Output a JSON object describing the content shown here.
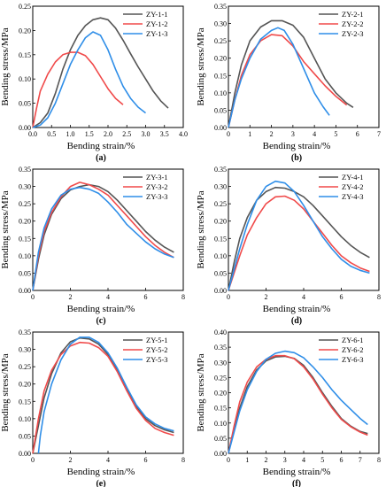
{
  "figure": {
    "panels": [
      {
        "label": "(a)",
        "ylabel": "Bending stress/MPa",
        "xlabel": "Bending strain/%"
      },
      {
        "label": "(b)",
        "ylabel": "Bending stress/MPa",
        "xlabel": "Bending strain/%"
      },
      {
        "label": "(c)",
        "ylabel": "Bending stress/MPa",
        "xlabel": "Bending strain/%"
      },
      {
        "label": "(d)",
        "ylabel": "Bending stress/MPa",
        "xlabel": "Bending strain/%"
      },
      {
        "label": "(e)",
        "ylabel": "Bending stress/MPa",
        "xlabel": "Bending strain/%"
      },
      {
        "label": "(f)",
        "ylabel": "Bending stress/MPa",
        "xlabel": "Bending strain/%"
      }
    ]
  },
  "colors": {
    "series1": "#555555",
    "series2": "#f04a4a",
    "series3": "#2f8ee8"
  },
  "chart_data": [
    {
      "type": "line",
      "title": "(a)",
      "xlabel": "Bending strain/%",
      "ylabel": "Bending stress/MPa",
      "xlim": [
        0,
        4.0
      ],
      "ylim": [
        0,
        0.25
      ],
      "xticks": [
        "0.0",
        "0.5",
        "1.0",
        "1.5",
        "2.0",
        "2.5",
        "3.0",
        "3.5",
        "4.0"
      ],
      "yticks": [
        "0.00",
        "0.05",
        "0.10",
        "0.15",
        "0.20",
        "0.25"
      ],
      "legend": "top-right",
      "series": [
        {
          "name": "ZY-1-1",
          "x": [
            0,
            0.2,
            0.4,
            0.6,
            0.8,
            1.0,
            1.2,
            1.4,
            1.6,
            1.8,
            2.0,
            2.2,
            2.4,
            2.6,
            2.8,
            3.0,
            3.2,
            3.4,
            3.6
          ],
          "y": [
            0,
            0.01,
            0.03,
            0.07,
            0.12,
            0.16,
            0.19,
            0.21,
            0.222,
            0.226,
            0.222,
            0.205,
            0.18,
            0.152,
            0.125,
            0.1,
            0.075,
            0.055,
            0.04
          ]
        },
        {
          "name": "ZY-1-2",
          "x": [
            0,
            0.1,
            0.2,
            0.4,
            0.6,
            0.8,
            1.0,
            1.2,
            1.4,
            1.6,
            1.8,
            2.0,
            2.2,
            2.4
          ],
          "y": [
            0,
            0.04,
            0.075,
            0.11,
            0.135,
            0.15,
            0.155,
            0.155,
            0.148,
            0.13,
            0.105,
            0.08,
            0.06,
            0.047
          ]
        },
        {
          "name": "ZY-1-3",
          "x": [
            0,
            0.2,
            0.4,
            0.6,
            0.8,
            1.0,
            1.2,
            1.4,
            1.6,
            1.8,
            2.0,
            2.2,
            2.4,
            2.6,
            2.8,
            3.0
          ],
          "y": [
            0,
            0.005,
            0.02,
            0.05,
            0.09,
            0.13,
            0.16,
            0.185,
            0.197,
            0.19,
            0.16,
            0.12,
            0.085,
            0.06,
            0.042,
            0.03
          ]
        }
      ]
    },
    {
      "type": "line",
      "title": "(b)",
      "xlabel": "Bending strain/%",
      "ylabel": "Bending stress/MPa",
      "xlim": [
        0,
        7
      ],
      "ylim": [
        0,
        0.35
      ],
      "xticks": [
        "0",
        "1",
        "2",
        "3",
        "4",
        "5",
        "6",
        "7"
      ],
      "yticks": [
        "0.00",
        "0.05",
        "0.10",
        "0.15",
        "0.20",
        "0.25",
        "0.30",
        "0.35"
      ],
      "legend": "top-right",
      "series": [
        {
          "name": "ZY-2-1",
          "x": [
            0,
            0.3,
            0.6,
            1.0,
            1.5,
            2.0,
            2.5,
            3.0,
            3.5,
            4.0,
            4.5,
            5.0,
            5.5,
            5.8
          ],
          "y": [
            0,
            0.1,
            0.18,
            0.25,
            0.29,
            0.308,
            0.308,
            0.295,
            0.26,
            0.2,
            0.14,
            0.1,
            0.07,
            0.058
          ]
        },
        {
          "name": "ZY-2-2",
          "x": [
            0,
            0.3,
            0.6,
            1.0,
            1.5,
            2.0,
            2.5,
            3.0,
            3.5,
            4.0,
            4.5,
            5.0,
            5.5
          ],
          "y": [
            0,
            0.08,
            0.15,
            0.21,
            0.25,
            0.268,
            0.265,
            0.235,
            0.19,
            0.155,
            0.12,
            0.09,
            0.065
          ]
        },
        {
          "name": "ZY-2-3",
          "x": [
            0,
            0.3,
            0.6,
            1.0,
            1.5,
            2.0,
            2.3,
            2.6,
            3.0,
            3.5,
            4.0,
            4.4,
            4.7
          ],
          "y": [
            0,
            0.08,
            0.14,
            0.2,
            0.255,
            0.28,
            0.288,
            0.28,
            0.24,
            0.17,
            0.1,
            0.06,
            0.035
          ]
        }
      ]
    },
    {
      "type": "line",
      "title": "(c)",
      "xlabel": "Bending strain/%",
      "ylabel": "Bending stress/MPa",
      "xlim": [
        0,
        8
      ],
      "ylim": [
        0,
        0.35
      ],
      "xticks": [
        "0",
        "2",
        "4",
        "6",
        "8"
      ],
      "yticks": [
        "0.00",
        "0.05",
        "0.10",
        "0.15",
        "0.20",
        "0.25",
        "0.30",
        "0.35"
      ],
      "legend": "top-right",
      "series": [
        {
          "name": "ZY-3-1",
          "x": [
            0,
            0.3,
            0.6,
            1.0,
            1.5,
            2.0,
            2.5,
            3.0,
            3.5,
            4.0,
            4.5,
            5.0,
            5.5,
            6.0,
            6.5,
            7.0,
            7.5
          ],
          "y": [
            0,
            0.09,
            0.16,
            0.22,
            0.265,
            0.29,
            0.3,
            0.305,
            0.3,
            0.285,
            0.26,
            0.23,
            0.2,
            0.17,
            0.145,
            0.125,
            0.11
          ]
        },
        {
          "name": "ZY-3-2",
          "x": [
            0,
            0.3,
            0.6,
            1.0,
            1.5,
            2.0,
            2.5,
            3.0,
            3.5,
            4.0,
            4.5,
            5.0,
            5.5,
            6.0,
            6.5,
            7.0,
            7.5
          ],
          "y": [
            0,
            0.1,
            0.17,
            0.225,
            0.27,
            0.3,
            0.312,
            0.305,
            0.292,
            0.275,
            0.245,
            0.215,
            0.185,
            0.155,
            0.13,
            0.11,
            0.095
          ]
        },
        {
          "name": "ZY-3-3",
          "x": [
            0,
            0.3,
            0.6,
            1.0,
            1.5,
            2.0,
            2.5,
            3.0,
            3.5,
            4.0,
            4.5,
            5.0,
            5.5,
            6.0,
            6.5,
            7.0,
            7.5
          ],
          "y": [
            0,
            0.11,
            0.18,
            0.235,
            0.275,
            0.292,
            0.297,
            0.292,
            0.28,
            0.255,
            0.225,
            0.19,
            0.165,
            0.14,
            0.12,
            0.105,
            0.095
          ]
        }
      ]
    },
    {
      "type": "line",
      "title": "(d)",
      "xlabel": "Bending strain/%",
      "ylabel": "Bending stress/MPa",
      "xlim": [
        0,
        8
      ],
      "ylim": [
        0,
        0.35
      ],
      "xticks": [
        "0",
        "2",
        "4",
        "6",
        "8"
      ],
      "yticks": [
        "0.00",
        "0.05",
        "0.10",
        "0.15",
        "0.20",
        "0.25",
        "0.30",
        "0.35"
      ],
      "legend": "top-right",
      "series": [
        {
          "name": "ZY-4-1",
          "x": [
            0,
            0.3,
            0.6,
            1.0,
            1.5,
            2.0,
            2.5,
            3.0,
            3.5,
            4.0,
            4.5,
            5.0,
            5.5,
            6.0,
            6.5,
            7.0,
            7.5
          ],
          "y": [
            0,
            0.08,
            0.15,
            0.21,
            0.26,
            0.285,
            0.297,
            0.295,
            0.285,
            0.27,
            0.245,
            0.215,
            0.185,
            0.155,
            0.13,
            0.11,
            0.095
          ]
        },
        {
          "name": "ZY-4-2",
          "x": [
            0,
            0.3,
            0.6,
            1.0,
            1.5,
            2.0,
            2.5,
            3.0,
            3.5,
            4.0,
            4.5,
            5.0,
            5.5,
            6.0,
            6.5,
            7.0,
            7.5
          ],
          "y": [
            0,
            0.05,
            0.1,
            0.16,
            0.21,
            0.25,
            0.27,
            0.272,
            0.26,
            0.235,
            0.2,
            0.165,
            0.13,
            0.1,
            0.08,
            0.065,
            0.055
          ]
        },
        {
          "name": "ZY-4-3",
          "x": [
            0,
            0.3,
            0.6,
            1.0,
            1.5,
            2.0,
            2.5,
            3.0,
            3.5,
            4.0,
            4.5,
            5.0,
            5.5,
            6.0,
            6.5,
            7.0,
            7.5
          ],
          "y": [
            0,
            0.06,
            0.12,
            0.19,
            0.26,
            0.3,
            0.315,
            0.31,
            0.285,
            0.245,
            0.2,
            0.155,
            0.12,
            0.09,
            0.07,
            0.058,
            0.05
          ]
        }
      ]
    },
    {
      "type": "line",
      "title": "(e)",
      "xlabel": "Bending strain/%",
      "ylabel": "Bending stress/MPa",
      "xlim": [
        0,
        8
      ],
      "ylim": [
        0,
        0.35
      ],
      "xticks": [
        "0",
        "2",
        "4",
        "6",
        "8"
      ],
      "yticks": [
        "0.00",
        "0.05",
        "0.10",
        "0.15",
        "0.20",
        "0.25",
        "0.30",
        "0.35"
      ],
      "legend": "top-right",
      "series": [
        {
          "name": "ZY-5-1",
          "x": [
            0,
            0.3,
            0.6,
            1.0,
            1.5,
            2.0,
            2.5,
            3.0,
            3.5,
            4.0,
            4.5,
            5.0,
            5.5,
            6.0,
            6.5,
            7.0,
            7.5
          ],
          "y": [
            0,
            0.08,
            0.16,
            0.23,
            0.29,
            0.322,
            0.333,
            0.33,
            0.315,
            0.285,
            0.24,
            0.185,
            0.135,
            0.1,
            0.08,
            0.068,
            0.06
          ]
        },
        {
          "name": "ZY-5-2",
          "x": [
            0,
            0.3,
            0.6,
            1.0,
            1.5,
            2.0,
            2.5,
            3.0,
            3.5,
            4.0,
            4.5,
            5.0,
            5.5,
            6.0,
            6.5,
            7.0,
            7.5
          ],
          "y": [
            0,
            0.1,
            0.18,
            0.24,
            0.285,
            0.31,
            0.32,
            0.318,
            0.305,
            0.28,
            0.235,
            0.18,
            0.13,
            0.095,
            0.072,
            0.06,
            0.052
          ]
        },
        {
          "name": "ZY-5-3",
          "x": [
            0.3,
            0.4,
            0.6,
            1.0,
            1.5,
            2.0,
            2.5,
            3.0,
            3.5,
            4.0,
            4.5,
            5.0,
            5.5,
            6.0,
            6.5,
            7.0,
            7.5
          ],
          "y": [
            0,
            0.05,
            0.12,
            0.2,
            0.27,
            0.315,
            0.335,
            0.335,
            0.32,
            0.29,
            0.245,
            0.19,
            0.14,
            0.105,
            0.085,
            0.072,
            0.065
          ]
        }
      ]
    },
    {
      "type": "line",
      "title": "(f)",
      "xlabel": "Bending strain/%",
      "ylabel": "Bending stress/MPa",
      "xlim": [
        0,
        8
      ],
      "ylim": [
        0,
        0.4
      ],
      "xticks": [
        "0",
        "1",
        "2",
        "3",
        "4",
        "5",
        "6",
        "7",
        "8"
      ],
      "yticks": [
        "0.00",
        "0.05",
        "0.10",
        "0.15",
        "0.20",
        "0.25",
        "0.30",
        "0.35",
        "0.40"
      ],
      "legend": "top-right",
      "series": [
        {
          "name": "ZY-6-1",
          "x": [
            0,
            0.3,
            0.6,
            1.0,
            1.5,
            2.0,
            2.5,
            3.0,
            3.5,
            4.0,
            4.5,
            5.0,
            5.5,
            6.0,
            6.5,
            7.0,
            7.4
          ],
          "y": [
            0,
            0.08,
            0.15,
            0.22,
            0.275,
            0.305,
            0.318,
            0.32,
            0.313,
            0.29,
            0.25,
            0.2,
            0.155,
            0.115,
            0.09,
            0.072,
            0.065
          ]
        },
        {
          "name": "ZY-6-2",
          "x": [
            0,
            0.3,
            0.6,
            1.0,
            1.5,
            2.0,
            2.5,
            3.0,
            3.5,
            4.0,
            4.5,
            5.0,
            5.5,
            6.0,
            6.5,
            7.0,
            7.4
          ],
          "y": [
            0,
            0.09,
            0.17,
            0.235,
            0.285,
            0.31,
            0.322,
            0.322,
            0.312,
            0.285,
            0.245,
            0.195,
            0.15,
            0.112,
            0.088,
            0.07,
            0.06
          ]
        },
        {
          "name": "ZY-6-3",
          "x": [
            0,
            0.3,
            0.6,
            1.0,
            1.5,
            2.0,
            2.5,
            3.0,
            3.5,
            4.0,
            4.5,
            5.0,
            5.5,
            6.0,
            6.5,
            7.0,
            7.4
          ],
          "y": [
            0,
            0.07,
            0.14,
            0.21,
            0.27,
            0.31,
            0.33,
            0.337,
            0.332,
            0.315,
            0.285,
            0.25,
            0.21,
            0.175,
            0.145,
            0.115,
            0.095
          ]
        }
      ]
    }
  ]
}
